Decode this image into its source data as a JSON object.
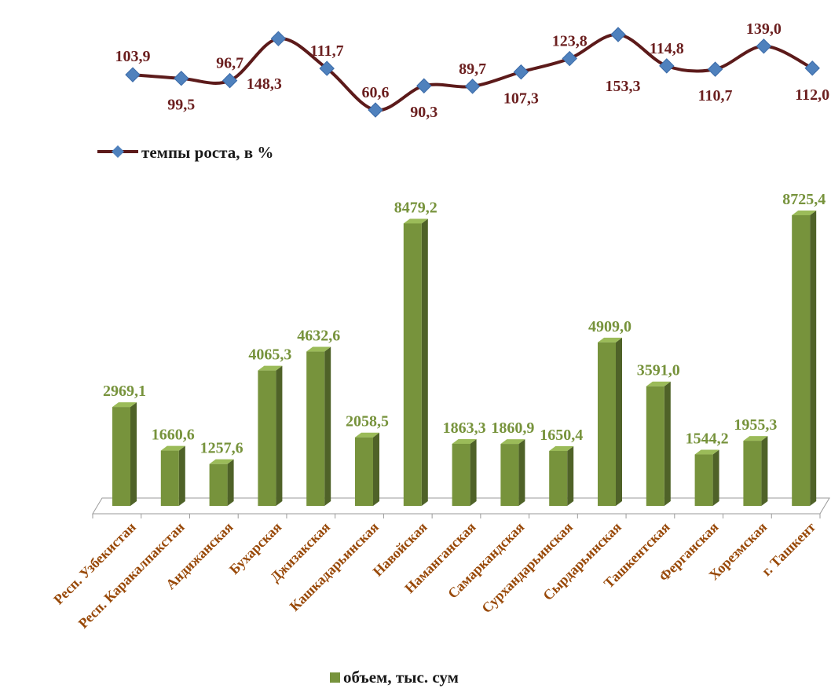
{
  "chart_data": [
    {
      "type": "line",
      "categories": [
        "Респ. Узбекистан",
        "Респ. Каракалпакстан",
        "Андижанская",
        "Бухарская",
        "Джизакская",
        "Кашкадарьинская",
        "Навойская",
        "Наманганская",
        "Самаркандская",
        "Сурхандарьинская",
        "Сырдарьинская",
        "Ташкентская",
        "Ферганская",
        "Хорезмская",
        "г. Ташкент"
      ],
      "series": [
        {
          "name": "темпы роста, в %",
          "values": [
            103.9,
            99.5,
            96.7,
            148.3,
            111.7,
            60.6,
            90.3,
            89.7,
            107.3,
            123.8,
            153.3,
            114.8,
            110.7,
            139.0,
            112.0
          ],
          "labels": [
            "103,9",
            "99,5",
            "96,7",
            "148,3",
            "111,7",
            "60,6",
            "90,3",
            "89,7",
            "107,3",
            "123,8",
            "153,3",
            "114,8",
            "110,7",
            "139,0",
            "112,0"
          ]
        }
      ],
      "legend": "bottom-left",
      "colors": {
        "line": "#5c1a1a",
        "marker": "#4f81bd",
        "label": "#6b1f1f"
      }
    },
    {
      "type": "bar",
      "categories": [
        "Респ. Узбекистан",
        "Респ. Каракалпакстан",
        "Андижанская",
        "Бухарская",
        "Джизакская",
        "Кашкадарьинская",
        "Навойская",
        "Наманганская",
        "Самаркандская",
        "Сурхандарьинская",
        "Сырдарьинская",
        "Ташкентская",
        "Ферганская",
        "Хорезмская",
        "г. Ташкент"
      ],
      "series": [
        {
          "name": "объем, тыс. сум",
          "values": [
            2969.1,
            1660.6,
            1257.6,
            4065.3,
            4632.6,
            2058.5,
            8479.2,
            1863.3,
            1860.9,
            1650.4,
            4909.0,
            3591.0,
            1544.2,
            1955.3,
            8725.4
          ],
          "labels": [
            "2969,1",
            "1660,6",
            "1257,6",
            "4065,3",
            "4632,6",
            "2058,5",
            "8479,2",
            "1863,3",
            "1860,9",
            "1650,4",
            "4909,0",
            "3591,0",
            "1544,2",
            "1955,3",
            "8725,4"
          ]
        }
      ],
      "legend": "bottom-center",
      "style": "3d",
      "colors": {
        "front": "#77933c",
        "top": "#9bbb59",
        "side": "#4f6228",
        "label": "#77933c",
        "category": "#984807"
      }
    }
  ]
}
